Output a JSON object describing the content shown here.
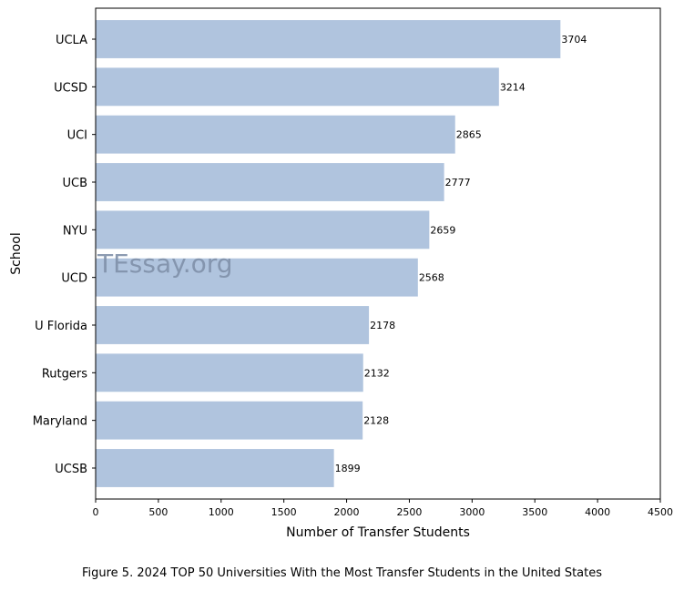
{
  "chart_data": {
    "type": "bar",
    "orientation": "horizontal",
    "categories": [
      "UCLA",
      "UCSD",
      "UCI",
      "UCB",
      "NYU",
      "UCD",
      "U Florida",
      "Rutgers",
      "Maryland",
      "UCSB"
    ],
    "values": [
      3704,
      3214,
      2865,
      2777,
      2659,
      2568,
      2178,
      2132,
      2128,
      1899
    ],
    "xlabel": "Number of Transfer Students",
    "ylabel": "School",
    "xlim": [
      0,
      4500
    ],
    "xticks": [
      0,
      500,
      1000,
      1500,
      2000,
      2500,
      3000,
      3500,
      4000,
      4500
    ],
    "bar_color": "#b0c4de",
    "grid": false,
    "data_labels": true
  },
  "watermark": "TEssay.org",
  "caption": "Figure 5. 2024 TOP 50 Universities With the Most Transfer Students in the United States"
}
